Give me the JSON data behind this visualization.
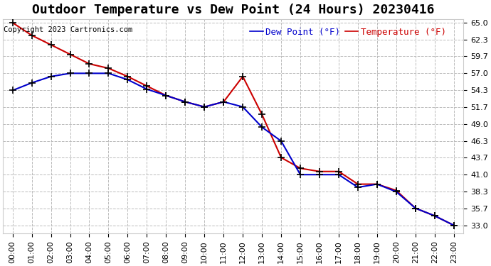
{
  "title": "Outdoor Temperature vs Dew Point (24 Hours) 20230416",
  "copyright_text": "Copyright 2023 Cartronics.com",
  "legend_dew": "Dew Point (°F)",
  "legend_temp": "Temperature (°F)",
  "hours": [
    0,
    1,
    2,
    3,
    4,
    5,
    6,
    7,
    8,
    9,
    10,
    11,
    12,
    13,
    14,
    15,
    16,
    17,
    18,
    19,
    20,
    21,
    22,
    23
  ],
  "x_labels": [
    "00:00",
    "01:00",
    "02:00",
    "03:00",
    "04:00",
    "05:00",
    "06:00",
    "07:00",
    "08:00",
    "09:00",
    "10:00",
    "11:00",
    "12:00",
    "13:00",
    "14:00",
    "15:00",
    "16:00",
    "17:00",
    "18:00",
    "19:00",
    "20:00",
    "21:00",
    "22:00",
    "23:00"
  ],
  "temperature": [
    65.0,
    63.0,
    61.5,
    60.0,
    58.5,
    57.8,
    56.5,
    55.0,
    53.5,
    52.5,
    51.7,
    52.5,
    56.5,
    50.5,
    43.7,
    42.0,
    41.5,
    41.5,
    39.5,
    39.5,
    38.5,
    35.7,
    34.5,
    33.0
  ],
  "dewpoint": [
    54.3,
    55.5,
    56.5,
    57.0,
    57.0,
    57.0,
    56.0,
    54.5,
    53.5,
    52.5,
    51.7,
    52.5,
    51.7,
    48.5,
    46.3,
    41.0,
    41.0,
    41.0,
    39.0,
    39.5,
    38.3,
    35.7,
    34.5,
    33.0
  ],
  "ylim_min": 31.7,
  "ylim_max": 65.5,
  "yticks": [
    33.0,
    35.7,
    38.3,
    41.0,
    43.7,
    46.3,
    49.0,
    51.7,
    54.3,
    57.0,
    59.7,
    62.3,
    65.0
  ],
  "temp_color": "#cc0000",
  "dew_color": "#0000cc",
  "grid_color": "#bbbbbb",
  "bg_color": "#ffffff",
  "marker": "+",
  "marker_color": "#000000",
  "marker_size": 7,
  "linewidth": 1.5,
  "title_fontsize": 13,
  "axis_fontsize": 8,
  "legend_fontsize": 9,
  "copyright_fontsize": 7.5
}
